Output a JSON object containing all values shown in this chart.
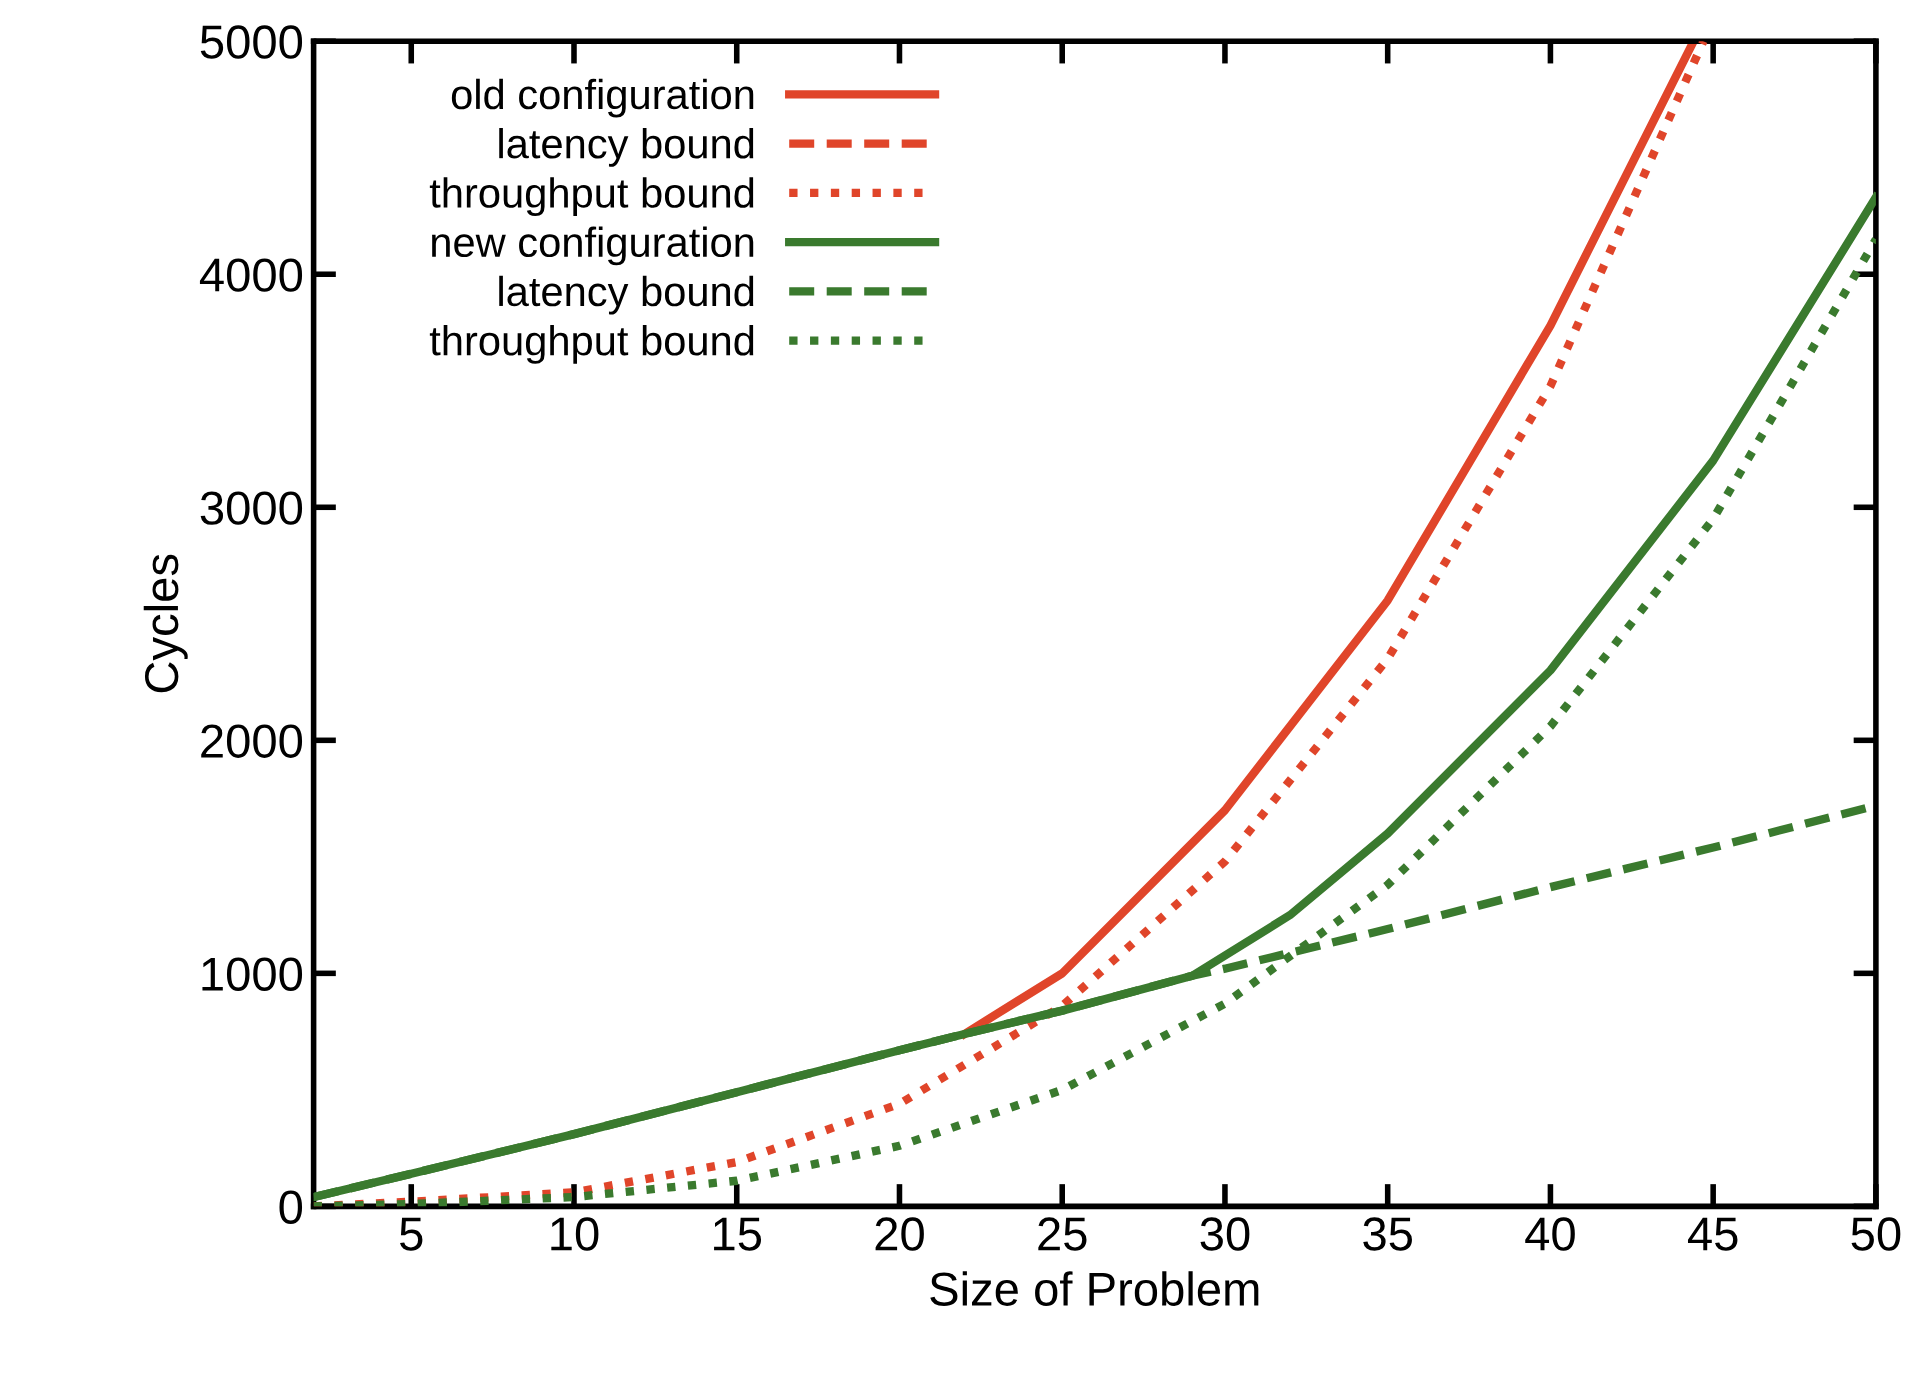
{
  "chart_data": {
    "type": "line",
    "xlabel": "Size of Problem",
    "ylabel": "Cycles",
    "xlim": [
      2,
      50
    ],
    "ylim": [
      0,
      5000
    ],
    "xticks": [
      5,
      10,
      15,
      20,
      25,
      30,
      35,
      40,
      45,
      50
    ],
    "yticks": [
      0,
      1000,
      2000,
      3000,
      4000,
      5000
    ],
    "grid": false,
    "legend": "top left",
    "marker": "none",
    "series": [
      {
        "name": "old configuration",
        "color": "#e0452a",
        "line_style": "solid",
        "x": [
          22,
          25,
          30,
          35,
          40,
          44.4
        ],
        "values": [
          740,
          1000,
          1700,
          2600,
          3780,
          5000
        ]
      },
      {
        "name": "latency bound",
        "color": "#e0452a",
        "line_style": "dashed"
      },
      {
        "name": "throughput bound",
        "color": "#e0452a",
        "line_style": "dotted",
        "x": [
          2,
          5,
          10,
          15,
          20,
          25,
          30,
          35,
          40,
          44.7
        ],
        "values": [
          0,
          20,
          60,
          190,
          440,
          860,
          1480,
          2350,
          3520,
          5000
        ]
      },
      {
        "name": "new configuration",
        "color": "#3a7a2e",
        "line_style": "solid",
        "x": [
          2,
          5,
          10,
          15,
          20,
          22,
          25,
          29,
          32,
          35,
          40,
          45,
          50
        ],
        "values": [
          40,
          140,
          310,
          490,
          670,
          740,
          840,
          990,
          1250,
          1600,
          2300,
          3200,
          4330
        ]
      },
      {
        "name": "latency bound",
        "color": "#3a7a2e",
        "line_style": "dashed",
        "x": [
          2,
          5,
          10,
          15,
          20,
          22,
          25,
          29,
          30,
          35,
          40,
          45,
          50
        ],
        "values": [
          40,
          140,
          310,
          490,
          670,
          740,
          840,
          990,
          1020,
          1190,
          1370,
          1540,
          1720
        ]
      },
      {
        "name": "throughput bound",
        "color": "#3a7a2e",
        "line_style": "dotted",
        "x": [
          2,
          5,
          10,
          15,
          20,
          25,
          30,
          35,
          40,
          45,
          50
        ],
        "values": [
          0,
          10,
          40,
          110,
          260,
          500,
          870,
          1380,
          2060,
          2950,
          4150
        ]
      }
    ]
  }
}
